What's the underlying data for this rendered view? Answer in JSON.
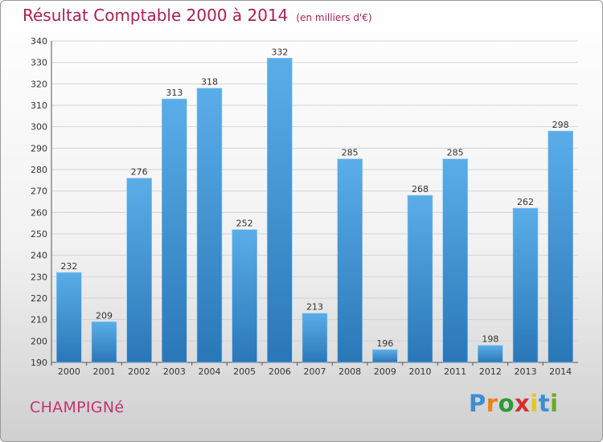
{
  "title": "Résultat Comptable 2000 à 2014",
  "unit": "(en milliers d'€)",
  "commune": "CHAMPIGNé",
  "brand": {
    "letters": [
      "P",
      "r",
      "o",
      "x",
      "i",
      "t",
      "i"
    ],
    "colors": [
      "#3a8fd6",
      "#e8821e",
      "#2a9a3a",
      "#d92e2e",
      "#e8c51e",
      "#3a8fd6",
      "#6aa82a"
    ]
  },
  "colors": {
    "bar_top": "#5aaee8",
    "bar_bottom": "#2a77b8",
    "grid": "#d4d4d4",
    "title": "#a8224d"
  },
  "chart_data": {
    "type": "bar",
    "categories": [
      "2000",
      "2001",
      "2002",
      "2003",
      "2004",
      "2005",
      "2006",
      "2007",
      "2008",
      "2009",
      "2010",
      "2011",
      "2012",
      "2013",
      "2014"
    ],
    "values": [
      232,
      209,
      276,
      313,
      318,
      252,
      332,
      213,
      285,
      196,
      268,
      285,
      198,
      262,
      298
    ],
    "ylim": [
      190,
      340
    ],
    "yticks": [
      190,
      200,
      210,
      220,
      230,
      240,
      250,
      260,
      270,
      280,
      290,
      300,
      310,
      320,
      330,
      340
    ],
    "grid": true,
    "data_labels": true
  }
}
